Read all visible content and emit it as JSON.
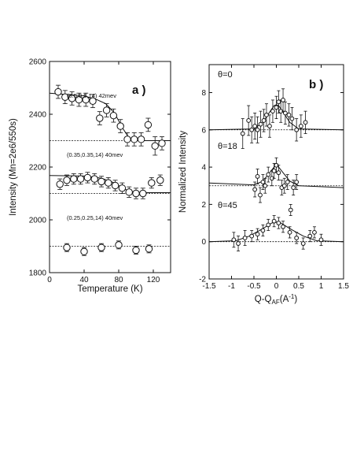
{
  "chart_data": [
    {
      "type": "scatter",
      "panel_label": "a )",
      "xlabel": "Temperature (K)",
      "ylabel": "Intensity (Mn=2e6/550s)",
      "xlim": [
        0,
        140
      ],
      "ylim": [
        1800,
        2600
      ],
      "xticks": [
        0,
        40,
        80,
        120
      ],
      "yticks": [
        1800,
        2000,
        2200,
        2400,
        2600
      ],
      "series": [
        {
          "name": "(0.5,0.5,14) 42mev",
          "x": [
            10,
            18,
            26,
            34,
            42,
            50,
            58,
            66,
            74,
            82,
            90,
            98,
            106,
            114,
            122,
            130
          ],
          "y": [
            2485,
            2465,
            2460,
            2455,
            2455,
            2450,
            2385,
            2415,
            2395,
            2355,
            2305,
            2305,
            2305,
            2360,
            2280,
            2290
          ],
          "err": [
            25,
            25,
            25,
            25,
            25,
            25,
            25,
            25,
            25,
            25,
            25,
            25,
            25,
            25,
            35,
            25
          ],
          "fit_x": [
            0,
            40,
            55,
            65,
            75,
            85,
            92,
            100,
            140
          ],
          "fit_y": [
            2480,
            2470,
            2455,
            2440,
            2405,
            2345,
            2310,
            2300,
            2300
          ],
          "baseline": 2300
        },
        {
          "name": "(0.35,0.35,14) 40mev",
          "x": [
            12,
            20,
            28,
            36,
            44,
            52,
            60,
            68,
            76,
            84,
            92,
            100,
            108,
            118,
            128
          ],
          "y": [
            2135,
            2150,
            2155,
            2155,
            2160,
            2155,
            2145,
            2140,
            2130,
            2120,
            2105,
            2100,
            2100,
            2140,
            2150
          ],
          "err": [
            20,
            20,
            20,
            20,
            20,
            20,
            20,
            20,
            20,
            20,
            20,
            20,
            20,
            20,
            20
          ],
          "fit_x": [
            0,
            40,
            60,
            75,
            85,
            92,
            100,
            140
          ],
          "fit_y": [
            2168,
            2166,
            2158,
            2140,
            2120,
            2108,
            2103,
            2103
          ],
          "baseline": 2100
        },
        {
          "name": "(0.25,0.25,14) 40mev",
          "x": [
            20,
            40,
            60,
            80,
            100,
            115
          ],
          "y": [
            1895,
            1880,
            1895,
            1905,
            1885,
            1890
          ],
          "err": [
            15,
            15,
            15,
            15,
            15,
            15
          ],
          "baseline": 1900
        }
      ]
    },
    {
      "type": "scatter",
      "panel_label": "b )",
      "xlabel": "Q-Q",
      "xlabel_sub": "AF",
      "xlabel_unit": "(A",
      "xlabel_sup": "-1",
      "xlabel_end": ")",
      "ylabel": "Normalized Intensity",
      "xlim": [
        -1.5,
        1.5
      ],
      "ylim": [
        -2,
        9.5
      ],
      "xticks": [
        -1.5,
        -1,
        -0.5,
        0,
        0.5,
        1,
        1.5
      ],
      "xtick_labels": [
        "-1.5",
        "-1",
        "-0.5",
        "0",
        "0.5",
        "1",
        "1.5"
      ],
      "yticks": [
        -2,
        0,
        2,
        4,
        6,
        8
      ],
      "series": [
        {
          "name": "θ=0",
          "baseline": 6,
          "x": [
            -0.75,
            -0.62,
            -0.55,
            -0.48,
            -0.42,
            -0.35,
            -0.28,
            -0.22,
            -0.15,
            -0.08,
            0,
            0.05,
            0.1,
            0.15,
            0.2,
            0.28,
            0.35,
            0.45,
            0.55,
            0.65
          ],
          "y": [
            5.8,
            6.5,
            6.0,
            6.2,
            6.0,
            6.3,
            6.5,
            6.8,
            6.2,
            7.0,
            7.2,
            7.5,
            7.0,
            7.6,
            6.9,
            6.8,
            6.6,
            6.0,
            6.2,
            6.4
          ],
          "err": [
            0.8,
            0.8,
            0.7,
            0.7,
            0.7,
            0.7,
            0.6,
            0.6,
            0.6,
            0.6,
            0.6,
            0.6,
            0.6,
            0.6,
            0.6,
            0.6,
            0.6,
            0.6,
            0.6,
            0.6
          ],
          "fit_x": [
            -1.5,
            -0.5,
            -0.3,
            -0.15,
            -0.05,
            0,
            0.05,
            0.15,
            0.3,
            0.5,
            1.5
          ],
          "fit_y": [
            6,
            6.05,
            6.4,
            6.95,
            7.3,
            7.35,
            7.3,
            6.95,
            6.4,
            6.05,
            6
          ]
        },
        {
          "name": "θ=18",
          "baseline": 3,
          "x": [
            -0.48,
            -0.42,
            -0.36,
            -0.3,
            -0.25,
            -0.18,
            -0.1,
            -0.05,
            0,
            0.05,
            0.12,
            0.18,
            0.25,
            0.32,
            0.38,
            0.45
          ],
          "y": [
            2.8,
            3.5,
            2.5,
            3.2,
            3.0,
            3.6,
            3.4,
            3.8,
            4.1,
            3.7,
            2.9,
            3.0,
            3.2,
            1.7,
            2.9,
            3.2
          ],
          "err": [
            0.4,
            0.4,
            0.4,
            0.4,
            0.4,
            0.4,
            0.4,
            0.4,
            0.4,
            0.4,
            0.4,
            0.4,
            0.4,
            0.3,
            0.4,
            0.4
          ],
          "fit_x": [
            -1.5,
            -0.5,
            -0.3,
            -0.15,
            -0.05,
            0,
            0.05,
            0.15,
            0.3,
            0.5,
            1.5
          ],
          "fit_y": [
            3.15,
            3.05,
            3.25,
            3.7,
            4.0,
            4.05,
            4.0,
            3.7,
            3.25,
            3.0,
            2.9
          ]
        },
        {
          "name": "θ=45",
          "baseline": 0,
          "x": [
            -0.95,
            -0.85,
            -0.7,
            -0.55,
            -0.42,
            -0.3,
            -0.18,
            -0.05,
            0.05,
            0.15,
            0.3,
            0.45,
            0.6,
            0.75,
            0.85,
            1.0
          ],
          "y": [
            0.1,
            -0.1,
            0.2,
            0.3,
            0.4,
            0.6,
            0.9,
            1.1,
            1.0,
            0.8,
            0.5,
            0.2,
            -0.1,
            0.3,
            0.5,
            0.1
          ],
          "err": [
            0.4,
            0.4,
            0.4,
            0.3,
            0.3,
            0.3,
            0.3,
            0.3,
            0.3,
            0.3,
            0.3,
            0.3,
            0.3,
            0.3,
            0.3,
            0.3
          ],
          "fit_x": [
            -1.5,
            -0.9,
            -0.6,
            -0.3,
            -0.1,
            0,
            0.1,
            0.3,
            0.6,
            0.9,
            1.5
          ],
          "fit_y": [
            0,
            0.05,
            0.3,
            0.7,
            1.0,
            1.05,
            1.0,
            0.7,
            0.3,
            0.05,
            0
          ]
        }
      ]
    }
  ]
}
